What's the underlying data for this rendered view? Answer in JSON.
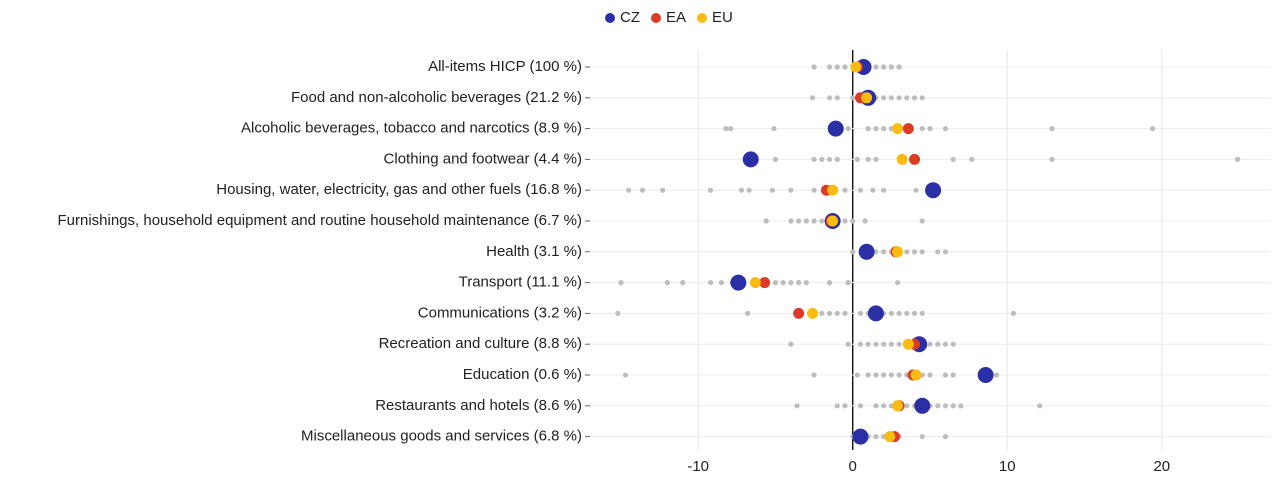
{
  "chart_data": {
    "type": "dot",
    "categories": [
      "All-items HICP (100 %)",
      "Food and non-alcoholic beverages (21.2 %)",
      "Alcoholic beverages, tobacco and narcotics (8.9 %)",
      "Clothing and footwear (4.4 %)",
      "Housing, water, electricity, gas and other fuels (16.8 %)",
      "Furnishings, household equipment and routine household maintenance (6.7 %)",
      "Health (3.1 %)",
      "Transport (11.1 %)",
      "Communications (3.2 %)",
      "Recreation and culture (8.8 %)",
      "Education (0.6 %)",
      "Restaurants and hotels (8.6 %)",
      "Miscellaneous goods and services (6.8 %)"
    ],
    "series": [
      {
        "name": "CZ",
        "color": "#2b2fa6",
        "values": [
          0.7,
          1.0,
          -1.1,
          -6.6,
          5.2,
          -1.3,
          0.9,
          -7.4,
          1.5,
          4.3,
          8.6,
          4.5,
          0.5
        ]
      },
      {
        "name": "EA",
        "color": "#dc3b26",
        "values": [
          0.3,
          0.5,
          3.6,
          4.0,
          -1.7,
          -1.4,
          2.8,
          -5.7,
          -3.5,
          4.0,
          3.9,
          3.0,
          2.7
        ]
      },
      {
        "name": "EU",
        "color": "#fbbc12",
        "values": [
          0.2,
          0.9,
          2.9,
          3.2,
          -1.3,
          -1.3,
          2.9,
          -6.3,
          -2.6,
          3.6,
          4.1,
          2.9,
          2.4
        ]
      }
    ],
    "others_color": "#bdbdbd",
    "others": [
      [
        -2.5,
        -1.5,
        -1,
        -0.5,
        0.5,
        1,
        1.5,
        2,
        2.5,
        3
      ],
      [
        -2.6,
        -1.5,
        -1,
        0,
        1.5,
        2,
        2.5,
        3,
        3.5,
        4,
        4.5
      ],
      [
        -8.2,
        -7.9,
        -5.1,
        -0.3,
        1,
        1.5,
        2,
        2.5,
        4.5,
        5,
        6,
        12.9,
        19.4
      ],
      [
        -5,
        -2.5,
        -2,
        -1.5,
        -1,
        0.3,
        1,
        1.5,
        6.5,
        7.7,
        12.9,
        24.9
      ],
      [
        -14.5,
        -13.6,
        -12.3,
        -9.2,
        -7.2,
        -6.7,
        -5.2,
        -4,
        -2.5,
        -0.5,
        0.5,
        1.3,
        2,
        4.1
      ],
      [
        -5.6,
        -4,
        -3.5,
        -3,
        -2.5,
        -2,
        -0.5,
        0,
        0.8,
        4.5
      ],
      [
        0,
        1.5,
        2,
        2.5,
        3.5,
        4,
        4.5,
        5.5,
        6
      ],
      [
        -15,
        -12,
        -11,
        -9.2,
        -8.5,
        -7.8,
        -5,
        -4.5,
        -4,
        -3.5,
        -3,
        -1.5,
        -0.3,
        2.9
      ],
      [
        -15.2,
        -6.8,
        -2,
        -1.5,
        -1,
        -0.5,
        0.5,
        1,
        2,
        2.5,
        3,
        3.5,
        4,
        4.5,
        10.4
      ],
      [
        -4,
        -0.3,
        0.5,
        1,
        1.5,
        2,
        2.5,
        3,
        4.5,
        5,
        5.5,
        6,
        6.5
      ],
      [
        -14.7,
        -2.5,
        0.3,
        1,
        1.5,
        2,
        2.5,
        3,
        3.5,
        4.5,
        5,
        6,
        6.5,
        9.3
      ],
      [
        -3.6,
        -1,
        -0.5,
        0.5,
        1.5,
        2,
        2.5,
        3.5,
        4,
        5,
        5.5,
        6,
        6.5,
        7,
        12.1
      ],
      [
        0,
        1,
        1.5,
        2,
        3,
        4.5,
        6
      ]
    ],
    "xlim": [
      -17,
      27
    ],
    "xticks": [
      -10,
      0,
      10,
      20
    ],
    "grid": true,
    "legend": "top"
  }
}
